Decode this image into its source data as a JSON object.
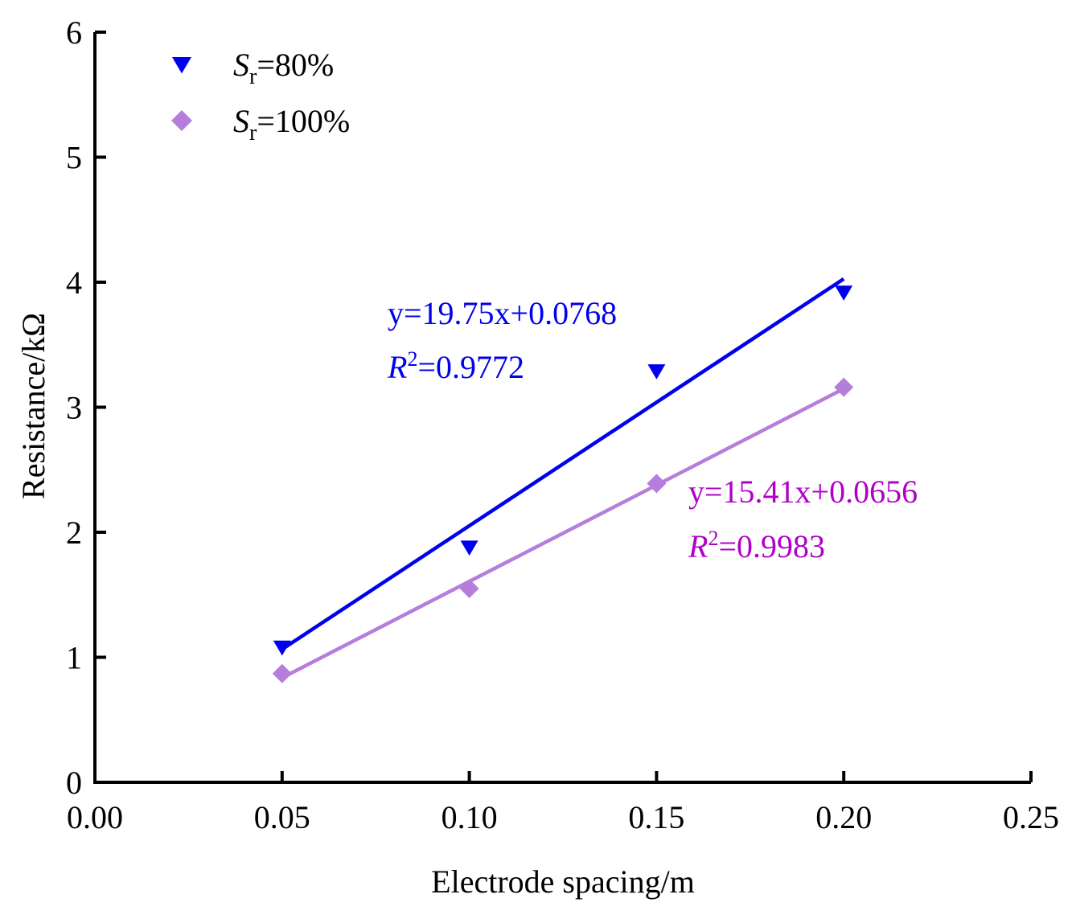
{
  "chart_data": {
    "type": "scatter",
    "title": "",
    "xlabel": "Electrode spacing/m",
    "ylabel": "Resistance/kΩ",
    "xlim": [
      0.0,
      0.25
    ],
    "ylim": [
      0,
      6
    ],
    "xticks": [
      "0.00",
      "0.05",
      "0.10",
      "0.15",
      "0.20",
      "0.25"
    ],
    "yticks": [
      "0",
      "1",
      "2",
      "3",
      "4",
      "5",
      "6"
    ],
    "legend_position": "top-left",
    "series": [
      {
        "name_main": "S",
        "name_sub": "r",
        "name_rest": "=80%",
        "marker": "triangle-down",
        "color": "#0000ee",
        "x": [
          0.05,
          0.1,
          0.15,
          0.2
        ],
        "y": [
          1.08,
          1.88,
          3.29,
          3.92
        ],
        "fit": {
          "slope": 19.75,
          "intercept": 0.0768,
          "equation": "y=19.75x+0.0768",
          "r2_label": "R",
          "r2_sup": "2",
          "r2_value": "=0.9772"
        }
      },
      {
        "name_main": "S",
        "name_sub": "r",
        "name_rest": "=100%",
        "marker": "diamond",
        "color": "#b57edc",
        "label_color": "#b000c8",
        "x": [
          0.05,
          0.1,
          0.15,
          0.2
        ],
        "y": [
          0.87,
          1.55,
          2.39,
          3.16
        ],
        "fit": {
          "slope": 15.41,
          "intercept": 0.0656,
          "equation": "y=15.41x+0.0656",
          "r2_label": "R",
          "r2_sup": "2",
          "r2_value": "=0.9983"
        }
      }
    ]
  }
}
